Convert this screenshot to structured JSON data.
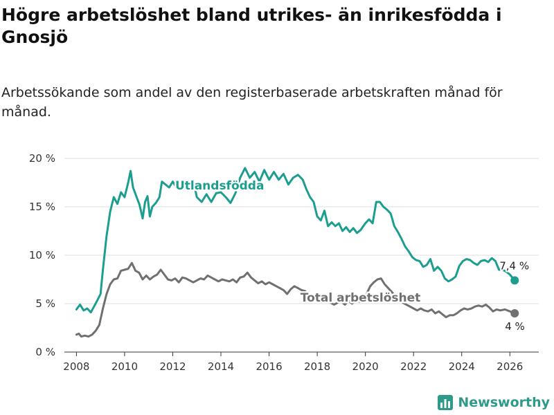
{
  "title": "Högre arbetslöshet bland utrikes- än inrikesfödda i Gnosjö",
  "subtitle": "Arbetssökande som andel av den registerbaserade arbetskraften månad för månad.",
  "brand": {
    "name": "Newsworthy",
    "icon": "bar-chart-logo-icon",
    "color": "#2e9a8a"
  },
  "chart_data": {
    "type": "line",
    "title": "Högre arbetslöshet bland utrikes- än inrikesfödda i Gnosjö",
    "xlabel": "",
    "ylabel": "",
    "xlim": [
      2007.5,
      2027.2
    ],
    "ylim": [
      0,
      21
    ],
    "x_ticks": [
      2008,
      2010,
      2012,
      2014,
      2016,
      2018,
      2020,
      2022,
      2024,
      2026
    ],
    "y_ticks": [
      0,
      5,
      10,
      15,
      20
    ],
    "y_tick_labels": [
      "0 %",
      "5 %",
      "10 %",
      "15 %",
      "20 %"
    ],
    "grid": "horizontal",
    "series": [
      {
        "name": "Utlandsfödda",
        "color": "#1b9e90",
        "end_label": "7,4 %",
        "points": [
          [
            2008.0,
            4.4
          ],
          [
            2008.15,
            4.9
          ],
          [
            2008.3,
            4.3
          ],
          [
            2008.45,
            4.5
          ],
          [
            2008.6,
            4.1
          ],
          [
            2008.75,
            4.8
          ],
          [
            2008.9,
            5.5
          ],
          [
            2009.0,
            6.0
          ],
          [
            2009.1,
            8.5
          ],
          [
            2009.25,
            12.0
          ],
          [
            2009.4,
            14.5
          ],
          [
            2009.55,
            16.0
          ],
          [
            2009.7,
            15.3
          ],
          [
            2009.85,
            16.5
          ],
          [
            2010.0,
            16.0
          ],
          [
            2010.15,
            17.5
          ],
          [
            2010.25,
            18.7
          ],
          [
            2010.35,
            17.0
          ],
          [
            2010.5,
            16.0
          ],
          [
            2010.62,
            15.2
          ],
          [
            2010.75,
            13.8
          ],
          [
            2010.85,
            15.5
          ],
          [
            2010.95,
            16.1
          ],
          [
            2011.05,
            14.0
          ],
          [
            2011.15,
            15.0
          ],
          [
            2011.3,
            15.4
          ],
          [
            2011.45,
            16.0
          ],
          [
            2011.55,
            17.6
          ],
          [
            2011.7,
            17.3
          ],
          [
            2011.85,
            17.0
          ],
          [
            2012.0,
            17.6
          ],
          [
            2012.15,
            17.0
          ],
          [
            2012.3,
            17.0
          ],
          [
            2012.45,
            17.4
          ],
          [
            2012.6,
            17.3
          ],
          [
            2012.75,
            16.9
          ],
          [
            2012.9,
            17.2
          ],
          [
            2013.0,
            16.0
          ],
          [
            2013.2,
            15.5
          ],
          [
            2013.4,
            16.3
          ],
          [
            2013.6,
            15.5
          ],
          [
            2013.8,
            16.4
          ],
          [
            2014.0,
            16.5
          ],
          [
            2014.2,
            16.0
          ],
          [
            2014.4,
            15.4
          ],
          [
            2014.6,
            16.4
          ],
          [
            2014.8,
            18.0
          ],
          [
            2015.0,
            19.0
          ],
          [
            2015.2,
            18.0
          ],
          [
            2015.4,
            18.6
          ],
          [
            2015.6,
            17.6
          ],
          [
            2015.8,
            18.8
          ],
          [
            2016.0,
            17.8
          ],
          [
            2016.2,
            18.6
          ],
          [
            2016.4,
            17.8
          ],
          [
            2016.6,
            18.4
          ],
          [
            2016.8,
            17.3
          ],
          [
            2017.0,
            18.0
          ],
          [
            2017.2,
            18.3
          ],
          [
            2017.4,
            17.8
          ],
          [
            2017.55,
            16.8
          ],
          [
            2017.7,
            16.0
          ],
          [
            2017.85,
            15.5
          ],
          [
            2018.0,
            14.0
          ],
          [
            2018.15,
            13.6
          ],
          [
            2018.3,
            14.6
          ],
          [
            2018.45,
            13.0
          ],
          [
            2018.6,
            13.4
          ],
          [
            2018.75,
            13.0
          ],
          [
            2018.9,
            13.3
          ],
          [
            2019.05,
            12.5
          ],
          [
            2019.2,
            12.9
          ],
          [
            2019.35,
            12.4
          ],
          [
            2019.5,
            12.8
          ],
          [
            2019.65,
            12.3
          ],
          [
            2019.8,
            12.6
          ],
          [
            2020.0,
            13.3
          ],
          [
            2020.15,
            13.7
          ],
          [
            2020.3,
            13.3
          ],
          [
            2020.45,
            15.5
          ],
          [
            2020.6,
            15.5
          ],
          [
            2020.75,
            15.0
          ],
          [
            2020.9,
            14.7
          ],
          [
            2021.05,
            14.3
          ],
          [
            2021.2,
            13.0
          ],
          [
            2021.35,
            12.4
          ],
          [
            2021.5,
            11.7
          ],
          [
            2021.65,
            10.9
          ],
          [
            2021.8,
            10.4
          ],
          [
            2021.95,
            9.8
          ],
          [
            2022.1,
            9.5
          ],
          [
            2022.25,
            9.4
          ],
          [
            2022.4,
            8.8
          ],
          [
            2022.55,
            9.0
          ],
          [
            2022.7,
            9.6
          ],
          [
            2022.85,
            8.4
          ],
          [
            2023.0,
            8.8
          ],
          [
            2023.15,
            8.4
          ],
          [
            2023.3,
            7.6
          ],
          [
            2023.45,
            7.3
          ],
          [
            2023.6,
            7.5
          ],
          [
            2023.75,
            7.8
          ],
          [
            2023.9,
            8.9
          ],
          [
            2024.05,
            9.4
          ],
          [
            2024.2,
            9.6
          ],
          [
            2024.35,
            9.5
          ],
          [
            2024.5,
            9.2
          ],
          [
            2024.65,
            9.0
          ],
          [
            2024.8,
            9.4
          ],
          [
            2024.95,
            9.5
          ],
          [
            2025.1,
            9.3
          ],
          [
            2025.25,
            9.7
          ],
          [
            2025.4,
            9.4
          ],
          [
            2025.55,
            8.5
          ],
          [
            2025.7,
            8.5
          ],
          [
            2025.85,
            8.3
          ],
          [
            2026.0,
            8.0
          ],
          [
            2026.2,
            7.4
          ]
        ]
      },
      {
        "name": "Total arbetslöshet",
        "color": "#707070",
        "end_label": "4 %",
        "points": [
          [
            2008.0,
            1.8
          ],
          [
            2008.1,
            1.9
          ],
          [
            2008.2,
            1.6
          ],
          [
            2008.35,
            1.7
          ],
          [
            2008.5,
            1.6
          ],
          [
            2008.65,
            1.8
          ],
          [
            2008.8,
            2.2
          ],
          [
            2008.95,
            2.8
          ],
          [
            2009.1,
            4.5
          ],
          [
            2009.25,
            6.0
          ],
          [
            2009.4,
            7.0
          ],
          [
            2009.55,
            7.5
          ],
          [
            2009.7,
            7.6
          ],
          [
            2009.85,
            8.4
          ],
          [
            2010.0,
            8.5
          ],
          [
            2010.15,
            8.6
          ],
          [
            2010.3,
            9.2
          ],
          [
            2010.45,
            8.4
          ],
          [
            2010.6,
            8.2
          ],
          [
            2010.75,
            7.5
          ],
          [
            2010.9,
            7.9
          ],
          [
            2011.05,
            7.5
          ],
          [
            2011.2,
            7.8
          ],
          [
            2011.35,
            8.0
          ],
          [
            2011.5,
            8.5
          ],
          [
            2011.65,
            8.0
          ],
          [
            2011.8,
            7.5
          ],
          [
            2011.95,
            7.4
          ],
          [
            2012.1,
            7.6
          ],
          [
            2012.25,
            7.2
          ],
          [
            2012.4,
            7.7
          ],
          [
            2012.55,
            7.6
          ],
          [
            2012.7,
            7.4
          ],
          [
            2012.85,
            7.2
          ],
          [
            2013.0,
            7.4
          ],
          [
            2013.15,
            7.6
          ],
          [
            2013.3,
            7.5
          ],
          [
            2013.45,
            7.9
          ],
          [
            2013.6,
            7.7
          ],
          [
            2013.75,
            7.5
          ],
          [
            2013.9,
            7.3
          ],
          [
            2014.05,
            7.5
          ],
          [
            2014.2,
            7.4
          ],
          [
            2014.35,
            7.3
          ],
          [
            2014.5,
            7.5
          ],
          [
            2014.65,
            7.2
          ],
          [
            2014.8,
            7.7
          ],
          [
            2014.95,
            7.8
          ],
          [
            2015.1,
            8.2
          ],
          [
            2015.25,
            7.7
          ],
          [
            2015.4,
            7.4
          ],
          [
            2015.55,
            7.1
          ],
          [
            2015.7,
            7.3
          ],
          [
            2015.85,
            7.0
          ],
          [
            2016.0,
            7.2
          ],
          [
            2016.15,
            7.0
          ],
          [
            2016.3,
            6.8
          ],
          [
            2016.45,
            6.6
          ],
          [
            2016.6,
            6.4
          ],
          [
            2016.75,
            6.0
          ],
          [
            2016.9,
            6.5
          ],
          [
            2017.05,
            6.8
          ],
          [
            2017.2,
            6.6
          ],
          [
            2017.35,
            6.4
          ],
          [
            2017.5,
            6.3
          ],
          [
            2017.65,
            5.8
          ],
          [
            2017.8,
            5.7
          ],
          [
            2017.95,
            5.4
          ],
          [
            2018.1,
            5.2
          ],
          [
            2018.25,
            5.4
          ],
          [
            2018.4,
            5.3
          ],
          [
            2018.55,
            5.1
          ],
          [
            2018.7,
            4.9
          ],
          [
            2018.85,
            5.1
          ],
          [
            2019.0,
            5.2
          ],
          [
            2019.15,
            4.9
          ],
          [
            2019.3,
            5.3
          ],
          [
            2019.45,
            5.0
          ],
          [
            2019.6,
            5.4
          ],
          [
            2019.75,
            5.2
          ],
          [
            2019.9,
            5.5
          ],
          [
            2020.05,
            6.0
          ],
          [
            2020.2,
            6.8
          ],
          [
            2020.35,
            7.2
          ],
          [
            2020.5,
            7.5
          ],
          [
            2020.65,
            7.6
          ],
          [
            2020.8,
            7.0
          ],
          [
            2020.95,
            6.6
          ],
          [
            2021.1,
            6.2
          ],
          [
            2021.25,
            5.7
          ],
          [
            2021.4,
            5.4
          ],
          [
            2021.55,
            5.1
          ],
          [
            2021.7,
            4.9
          ],
          [
            2021.85,
            4.7
          ],
          [
            2022.0,
            4.5
          ],
          [
            2022.15,
            4.3
          ],
          [
            2022.3,
            4.5
          ],
          [
            2022.45,
            4.3
          ],
          [
            2022.6,
            4.2
          ],
          [
            2022.75,
            4.4
          ],
          [
            2022.9,
            4.0
          ],
          [
            2023.05,
            4.2
          ],
          [
            2023.2,
            3.9
          ],
          [
            2023.35,
            3.6
          ],
          [
            2023.5,
            3.8
          ],
          [
            2023.65,
            3.8
          ],
          [
            2023.8,
            4.0
          ],
          [
            2023.95,
            4.3
          ],
          [
            2024.1,
            4.5
          ],
          [
            2024.25,
            4.4
          ],
          [
            2024.4,
            4.5
          ],
          [
            2024.55,
            4.7
          ],
          [
            2024.7,
            4.8
          ],
          [
            2024.85,
            4.7
          ],
          [
            2025.0,
            4.9
          ],
          [
            2025.15,
            4.6
          ],
          [
            2025.3,
            4.2
          ],
          [
            2025.45,
            4.4
          ],
          [
            2025.6,
            4.3
          ],
          [
            2025.8,
            4.4
          ],
          [
            2026.0,
            4.2
          ],
          [
            2026.2,
            4.0
          ]
        ]
      }
    ]
  }
}
